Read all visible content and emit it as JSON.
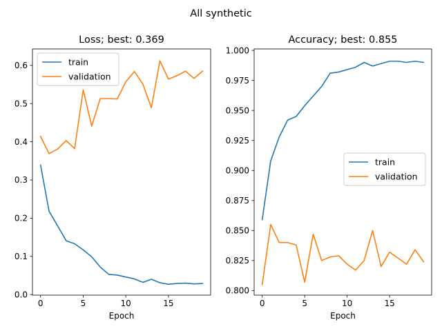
{
  "figure": {
    "title": "All synthetic"
  },
  "chart_data": [
    {
      "type": "line",
      "title": "Loss; best: 0.369",
      "xlabel": "Epoch",
      "ylabel": "",
      "x": [
        0,
        1,
        2,
        3,
        4,
        5,
        6,
        7,
        8,
        9,
        10,
        11,
        12,
        13,
        14,
        15,
        16,
        17,
        18,
        19
      ],
      "xlim": [
        -0.95,
        19.95
      ],
      "ylim": [
        -0.0015,
        0.643
      ],
      "xticks": [
        0,
        5,
        10,
        15
      ],
      "xtick_labels": [
        "0",
        "5",
        "10",
        "15"
      ],
      "yticks": [
        0.0,
        0.1,
        0.2,
        0.3,
        0.4,
        0.5,
        0.6
      ],
      "ytick_labels": [
        "0.0",
        "0.1",
        "0.2",
        "0.3",
        "0.4",
        "0.5",
        "0.6"
      ],
      "legend": "top-left",
      "grid": false,
      "series": [
        {
          "name": "train",
          "color": "#1f77b4",
          "values": [
            0.339,
            0.218,
            0.18,
            0.141,
            0.133,
            0.117,
            0.099,
            0.072,
            0.053,
            0.051,
            0.046,
            0.041,
            0.032,
            0.04,
            0.031,
            0.027,
            0.029,
            0.03,
            0.028,
            0.029
          ]
        },
        {
          "name": "validation",
          "color": "#ff7f0e",
          "values": [
            0.414,
            0.369,
            0.381,
            0.403,
            0.382,
            0.536,
            0.441,
            0.513,
            0.513,
            0.512,
            0.557,
            0.584,
            0.551,
            0.489,
            0.612,
            0.564,
            0.573,
            0.585,
            0.566,
            0.585
          ]
        }
      ]
    },
    {
      "type": "line",
      "title": "Accuracy; best: 0.855",
      "xlabel": "Epoch",
      "ylabel": "",
      "x": [
        0,
        1,
        2,
        3,
        4,
        5,
        6,
        7,
        8,
        9,
        10,
        11,
        12,
        13,
        14,
        15,
        16,
        17,
        18,
        19
      ],
      "xlim": [
        -0.95,
        19.95
      ],
      "ylim": [
        0.7962,
        1.0012
      ],
      "xticks": [
        0,
        5,
        10,
        15
      ],
      "xtick_labels": [
        "0",
        "5",
        "10",
        "15"
      ],
      "yticks": [
        0.8,
        0.825,
        0.85,
        0.875,
        0.9,
        0.925,
        0.95,
        0.975,
        1.0
      ],
      "ytick_labels": [
        "0.800",
        "0.825",
        "0.850",
        "0.875",
        "0.900",
        "0.925",
        "0.950",
        "0.975",
        "1.000"
      ],
      "legend": "center-right",
      "grid": false,
      "series": [
        {
          "name": "train",
          "color": "#1f77b4",
          "values": [
            0.859,
            0.908,
            0.928,
            0.942,
            0.945,
            0.954,
            0.962,
            0.97,
            0.981,
            0.982,
            0.984,
            0.986,
            0.99,
            0.987,
            0.989,
            0.991,
            0.991,
            0.99,
            0.991,
            0.99
          ]
        },
        {
          "name": "validation",
          "color": "#ff7f0e",
          "values": [
            0.805,
            0.855,
            0.84,
            0.84,
            0.838,
            0.807,
            0.847,
            0.825,
            0.828,
            0.829,
            0.822,
            0.817,
            0.825,
            0.85,
            0.82,
            0.832,
            0.827,
            0.822,
            0.834,
            0.824
          ]
        }
      ]
    }
  ]
}
